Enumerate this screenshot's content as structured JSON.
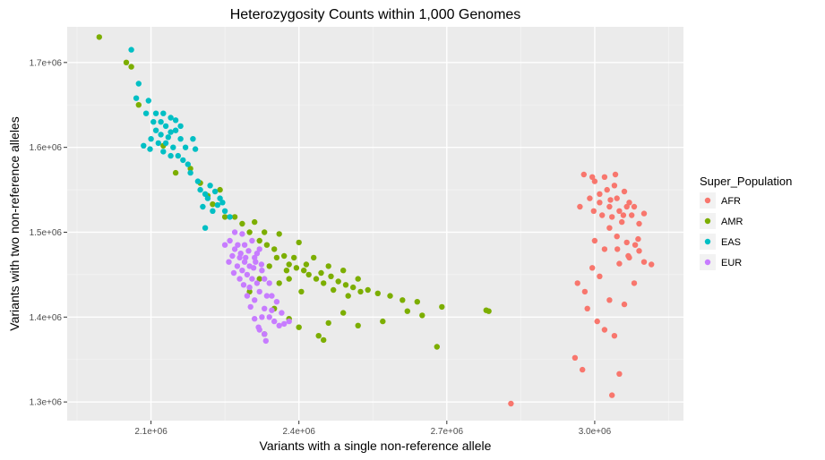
{
  "chart_data": {
    "type": "scatter",
    "title": "Heterozygosity Counts within 1,000 Genomes",
    "xlabel": "Variants with a single non-reference allele",
    "ylabel": "Variants with two non-reference alleles",
    "xlim": [
      1930000,
      3180000
    ],
    "ylim": [
      1278000,
      1742000
    ],
    "x_ticks": [
      2100000,
      2400000,
      2700000,
      3000000
    ],
    "x_tick_labels": [
      "2.1e+06",
      "2.4e+06",
      "2.7e+06",
      "3.0e+06"
    ],
    "y_ticks": [
      1300000,
      1400000,
      1500000,
      1600000,
      1700000
    ],
    "y_tick_labels": [
      "1.3e+06",
      "1.4e+06",
      "1.5e+06",
      "1.6e+06",
      "1.7e+06"
    ],
    "grid": true,
    "legend": {
      "title": "Super_Population",
      "position": "right",
      "entries": [
        "AFR",
        "AMR",
        "EAS",
        "EUR"
      ]
    },
    "series": [
      {
        "name": "AFR",
        "color": "#F8766D",
        "points": [
          [
            2830000,
            1298000
          ],
          [
            2960000,
            1352000
          ],
          [
            2975000,
            1338000
          ],
          [
            3035000,
            1308000
          ],
          [
            3050000,
            1333000
          ],
          [
            3020000,
            1385000
          ],
          [
            3040000,
            1378000
          ],
          [
            2985000,
            1410000
          ],
          [
            3005000,
            1395000
          ],
          [
            2965000,
            1440000
          ],
          [
            2980000,
            1430000
          ],
          [
            3010000,
            1448000
          ],
          [
            3030000,
            1420000
          ],
          [
            3060000,
            1415000
          ],
          [
            3080000,
            1440000
          ],
          [
            2995000,
            1458000
          ],
          [
            3050000,
            1463000
          ],
          [
            3070000,
            1470000
          ],
          [
            3100000,
            1465000
          ],
          [
            3115000,
            1462000
          ],
          [
            3090000,
            1478000
          ],
          [
            3000000,
            1490000
          ],
          [
            3030000,
            1505000
          ],
          [
            3045000,
            1495000
          ],
          [
            3065000,
            1488000
          ],
          [
            3082000,
            1485000
          ],
          [
            2978000,
            1568000
          ],
          [
            3000000,
            1560000
          ],
          [
            3020000,
            1565000
          ],
          [
            3040000,
            1555000
          ],
          [
            3060000,
            1548000
          ],
          [
            3070000,
            1535000
          ],
          [
            2990000,
            1540000
          ],
          [
            3010000,
            1535000
          ],
          [
            3030000,
            1530000
          ],
          [
            3050000,
            1525000
          ],
          [
            3080000,
            1530000
          ],
          [
            3100000,
            1522000
          ],
          [
            2970000,
            1530000
          ],
          [
            3090000,
            1510000
          ],
          [
            3035000,
            1518000
          ],
          [
            3055000,
            1512000
          ],
          [
            3010000,
            1545000
          ],
          [
            3025000,
            1550000
          ],
          [
            3045000,
            1540000
          ],
          [
            3065000,
            1530000
          ],
          [
            3015000,
            1520000
          ],
          [
            3075000,
            1520000
          ],
          [
            2998000,
            1525000
          ],
          [
            3042000,
            1568000
          ],
          [
            2995000,
            1565000
          ],
          [
            3032000,
            1538000
          ],
          [
            3058000,
            1520000
          ],
          [
            3088000,
            1492000
          ],
          [
            3068000,
            1472000
          ],
          [
            3020000,
            1480000
          ],
          [
            3046000,
            1480000
          ]
        ]
      },
      {
        "name": "AMR",
        "color": "#7CAE00",
        "points": [
          [
            1995000,
            1730000
          ],
          [
            2050000,
            1700000
          ],
          [
            2060000,
            1695000
          ],
          [
            2075000,
            1650000
          ],
          [
            2125000,
            1602000
          ],
          [
            2150000,
            1570000
          ],
          [
            2180000,
            1575000
          ],
          [
            2200000,
            1558000
          ],
          [
            2215000,
            1543000
          ],
          [
            2240000,
            1550000
          ],
          [
            2225000,
            1533000
          ],
          [
            2250000,
            1518000
          ],
          [
            2270000,
            1518000
          ],
          [
            2285000,
            1510000
          ],
          [
            2300000,
            1500000
          ],
          [
            2320000,
            1490000
          ],
          [
            2335000,
            1485000
          ],
          [
            2350000,
            1480000
          ],
          [
            2370000,
            1472000
          ],
          [
            2380000,
            1462000
          ],
          [
            2395000,
            1458000
          ],
          [
            2410000,
            1455000
          ],
          [
            2420000,
            1450000
          ],
          [
            2435000,
            1445000
          ],
          [
            2450000,
            1440000
          ],
          [
            2465000,
            1448000
          ],
          [
            2480000,
            1442000
          ],
          [
            2495000,
            1438000
          ],
          [
            2510000,
            1435000
          ],
          [
            2525000,
            1430000
          ],
          [
            2540000,
            1432000
          ],
          [
            2560000,
            1428000
          ],
          [
            2585000,
            1425000
          ],
          [
            2610000,
            1420000
          ],
          [
            2640000,
            1418000
          ],
          [
            2690000,
            1412000
          ],
          [
            2780000,
            1408000
          ],
          [
            2785000,
            1407000
          ],
          [
            2310000,
            1512000
          ],
          [
            2330000,
            1500000
          ],
          [
            2360000,
            1498000
          ],
          [
            2400000,
            1488000
          ],
          [
            2430000,
            1470000
          ],
          [
            2460000,
            1460000
          ],
          [
            2490000,
            1455000
          ],
          [
            2520000,
            1445000
          ],
          [
            2340000,
            1460000
          ],
          [
            2360000,
            1440000
          ],
          [
            2380000,
            1445000
          ],
          [
            2405000,
            1430000
          ],
          [
            2350000,
            1410000
          ],
          [
            2380000,
            1398000
          ],
          [
            2400000,
            1388000
          ],
          [
            2440000,
            1378000
          ],
          [
            2460000,
            1393000
          ],
          [
            2490000,
            1405000
          ],
          [
            2520000,
            1390000
          ],
          [
            2570000,
            1395000
          ],
          [
            2620000,
            1407000
          ],
          [
            2650000,
            1402000
          ],
          [
            2680000,
            1365000
          ],
          [
            2450000,
            1373000
          ],
          [
            2330000,
            1380000
          ],
          [
            2300000,
            1430000
          ],
          [
            2320000,
            1445000
          ],
          [
            2355000,
            1470000
          ],
          [
            2375000,
            1455000
          ],
          [
            2390000,
            1470000
          ],
          [
            2415000,
            1462000
          ],
          [
            2445000,
            1452000
          ],
          [
            2470000,
            1432000
          ],
          [
            2500000,
            1425000
          ]
        ]
      },
      {
        "name": "EAS",
        "color": "#00BFC4",
        "points": [
          [
            2060000,
            1715000
          ],
          [
            2075000,
            1675000
          ],
          [
            2070000,
            1658000
          ],
          [
            2090000,
            1640000
          ],
          [
            2085000,
            1602000
          ],
          [
            2095000,
            1655000
          ],
          [
            2105000,
            1630000
          ],
          [
            2110000,
            1620000
          ],
          [
            2120000,
            1630000
          ],
          [
            2130000,
            1625000
          ],
          [
            2100000,
            1610000
          ],
          [
            2115000,
            1605000
          ],
          [
            2135000,
            1612000
          ],
          [
            2145000,
            1600000
          ],
          [
            2150000,
            1620000
          ],
          [
            2160000,
            1610000
          ],
          [
            2125000,
            1595000
          ],
          [
            2140000,
            1590000
          ],
          [
            2155000,
            1590000
          ],
          [
            2170000,
            1600000
          ],
          [
            2165000,
            1585000
          ],
          [
            2175000,
            1580000
          ],
          [
            2180000,
            1570000
          ],
          [
            2110000,
            1640000
          ],
          [
            2125000,
            1640000
          ],
          [
            2140000,
            1635000
          ],
          [
            2098000,
            1598000
          ],
          [
            2130000,
            1605000
          ],
          [
            2150000,
            1632000
          ],
          [
            2185000,
            1610000
          ],
          [
            2190000,
            1598000
          ],
          [
            2195000,
            1560000
          ],
          [
            2200000,
            1550000
          ],
          [
            2210000,
            1545000
          ],
          [
            2215000,
            1540000
          ],
          [
            2230000,
            1548000
          ],
          [
            2240000,
            1540000
          ],
          [
            2205000,
            1530000
          ],
          [
            2235000,
            1532000
          ],
          [
            2220000,
            1555000
          ],
          [
            2250000,
            1525000
          ],
          [
            2260000,
            1518000
          ],
          [
            2210000,
            1505000
          ],
          [
            2245000,
            1535000
          ],
          [
            2225000,
            1525000
          ],
          [
            2120000,
            1615000
          ],
          [
            2140000,
            1618000
          ],
          [
            2160000,
            1625000
          ]
        ]
      },
      {
        "name": "EUR",
        "color": "#C77CFF",
        "points": [
          [
            2260000,
            1490000
          ],
          [
            2270000,
            1480000
          ],
          [
            2280000,
            1470000
          ],
          [
            2290000,
            1465000
          ],
          [
            2300000,
            1460000
          ],
          [
            2310000,
            1470000
          ],
          [
            2320000,
            1480000
          ],
          [
            2275000,
            1460000
          ],
          [
            2285000,
            1455000
          ],
          [
            2295000,
            1450000
          ],
          [
            2305000,
            1445000
          ],
          [
            2315000,
            1440000
          ],
          [
            2325000,
            1455000
          ],
          [
            2265000,
            1472000
          ],
          [
            2290000,
            1485000
          ],
          [
            2305000,
            1490000
          ],
          [
            2280000,
            1445000
          ],
          [
            2300000,
            1435000
          ],
          [
            2320000,
            1430000
          ],
          [
            2310000,
            1420000
          ],
          [
            2330000,
            1445000
          ],
          [
            2340000,
            1440000
          ],
          [
            2295000,
            1425000
          ],
          [
            2285000,
            1498000
          ],
          [
            2315000,
            1475000
          ],
          [
            2250000,
            1485000
          ],
          [
            2270000,
            1500000
          ],
          [
            2330000,
            1410000
          ],
          [
            2340000,
            1400000
          ],
          [
            2350000,
            1395000
          ],
          [
            2360000,
            1390000
          ],
          [
            2370000,
            1392000
          ],
          [
            2380000,
            1395000
          ],
          [
            2320000,
            1385000
          ],
          [
            2330000,
            1380000
          ],
          [
            2325000,
            1400000
          ],
          [
            2345000,
            1408000
          ],
          [
            2355000,
            1418000
          ],
          [
            2310000,
            1398000
          ],
          [
            2318000,
            1388000
          ],
          [
            2335000,
            1425000
          ],
          [
            2345000,
            1425000
          ],
          [
            2298000,
            1478000
          ],
          [
            2308000,
            1458000
          ],
          [
            2268000,
            1452000
          ],
          [
            2258000,
            1465000
          ],
          [
            2288000,
            1438000
          ],
          [
            2302000,
            1412000
          ],
          [
            2312000,
            1465000
          ],
          [
            2276000,
            1485000
          ],
          [
            2333000,
            1372000
          ],
          [
            2365000,
            1405000
          ],
          [
            2282000,
            1475000
          ],
          [
            2292000,
            1470000
          ],
          [
            2324000,
            1462000
          ]
        ]
      }
    ]
  }
}
